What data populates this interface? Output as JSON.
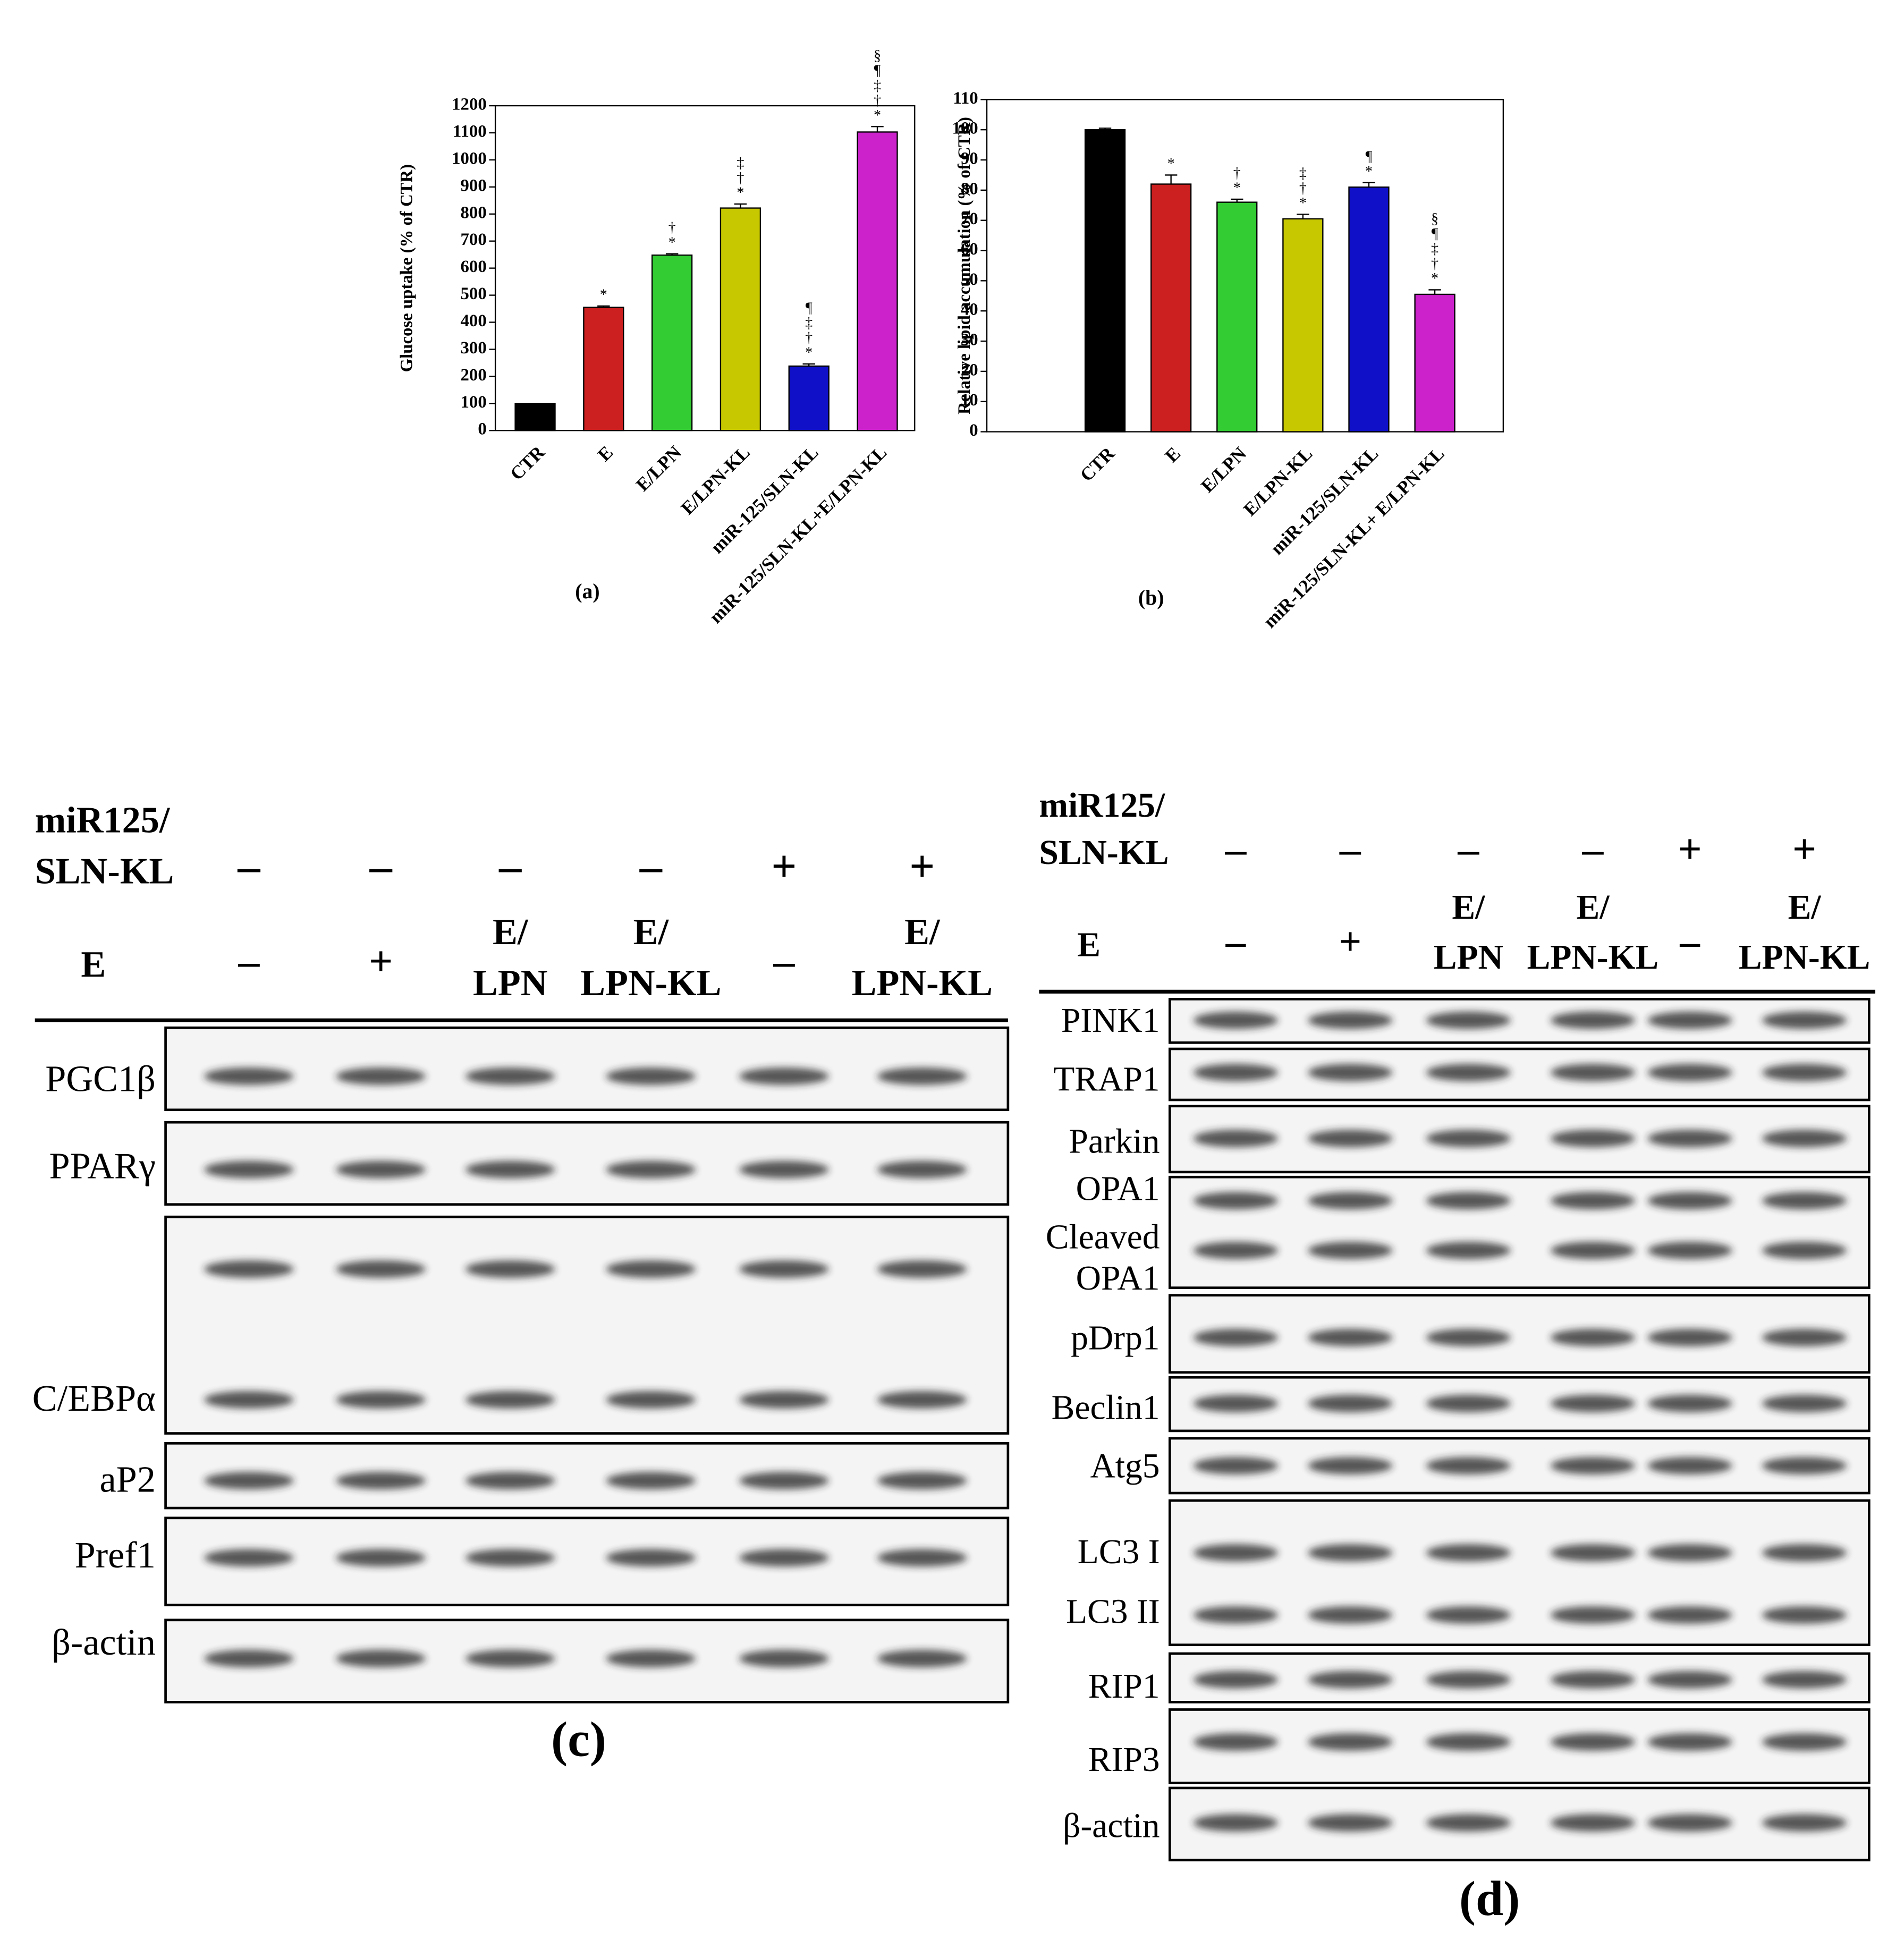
{
  "chart_data": [
    {
      "type": "bar",
      "panel": "(a)",
      "ylabel": "Glucose uptake (% of CTR)",
      "categories": [
        "CTR",
        "E",
        "E/LPN",
        "E/LPN-KL",
        "miR-125/SLN-KL",
        "miR-125/SLN-KL+E/LPN-KL"
      ],
      "values": [
        100,
        455,
        648,
        822,
        238,
        1103
      ],
      "errors": [
        0,
        5,
        5,
        15,
        8,
        20
      ],
      "colors": [
        "#000000",
        "#cc1f1f",
        "#33cc33",
        "#c8c800",
        "#1010c8",
        "#cc22cc"
      ],
      "annotations": [
        [],
        [
          "*"
        ],
        [
          "†",
          "*"
        ],
        [
          "‡",
          "†",
          "*"
        ],
        [
          "¶",
          "‡",
          "†",
          "*"
        ],
        [
          "§",
          "¶",
          "‡",
          "†",
          "*"
        ]
      ],
      "ylim": [
        0,
        1200
      ],
      "yticks": [
        0,
        100,
        200,
        300,
        400,
        500,
        600,
        700,
        800,
        900,
        1000,
        1100,
        1200
      ]
    },
    {
      "type": "bar",
      "panel": "(b)",
      "ylabel": "Relative lipid accumulation (% of CTR)",
      "categories": [
        "CTR",
        "E",
        "E/LPN",
        "E/LPN-KL",
        "miR-125/SLN-KL",
        "miR-125/SLN-KL+ E/LPN-KL"
      ],
      "values": [
        100,
        82,
        76,
        70.5,
        81,
        45.5
      ],
      "errors": [
        0.5,
        3,
        1,
        1.5,
        1.5,
        1.5
      ],
      "colors": [
        "#000000",
        "#cc1f1f",
        "#33cc33",
        "#c8c800",
        "#1010c8",
        "#cc22cc"
      ],
      "annotations": [
        [],
        [
          "*"
        ],
        [
          "†",
          "*"
        ],
        [
          "‡",
          "†",
          "*"
        ],
        [
          "¶",
          "*"
        ],
        [
          "§",
          "¶",
          "‡",
          "†",
          "*"
        ]
      ],
      "ylim": [
        0,
        110
      ],
      "yticks": [
        0,
        10,
        20,
        30,
        40,
        50,
        60,
        70,
        80,
        90,
        100,
        110
      ]
    }
  ],
  "blots": [
    {
      "panel": "(c)",
      "header": {
        "lines": [
          "miR125/",
          "SLN-KL"
        ],
        "lanes": [
          "–",
          "–",
          "–",
          "–",
          "+",
          "+"
        ]
      },
      "treatment": {
        "label": "E",
        "lanes": [
          [
            "–"
          ],
          [
            "+"
          ],
          [
            "E/",
            "LPN"
          ],
          [
            "E/",
            "LPN-KL"
          ],
          [
            "–"
          ],
          [
            "E/",
            "LPN-KL"
          ]
        ]
      },
      "rows": [
        {
          "labels": [
            "PGC1β"
          ]
        },
        {
          "labels": [
            "PPARγ"
          ]
        },
        {
          "labels": [
            "C/EBPα"
          ]
        },
        {
          "labels": [
            "aP2"
          ]
        },
        {
          "labels": [
            "Pref1"
          ]
        },
        {
          "labels": [
            "β-actin"
          ]
        }
      ]
    },
    {
      "panel": "(d)",
      "header": {
        "lines": [
          "miR125/",
          "SLN-KL"
        ],
        "lanes": [
          "–",
          "–",
          "–",
          "–",
          "+",
          "+"
        ]
      },
      "treatment": {
        "label": "E",
        "lanes": [
          [
            "–"
          ],
          [
            "+"
          ],
          [
            "E/",
            "LPN"
          ],
          [
            "E/",
            "LPN-KL"
          ],
          [
            "–"
          ],
          [
            "E/",
            "LPN-KL"
          ]
        ]
      },
      "rows": [
        {
          "labels": [
            "PINK1"
          ]
        },
        {
          "labels": [
            "TRAP1"
          ]
        },
        {
          "labels": [
            "Parkin"
          ]
        },
        {
          "labels": [
            "OPA1",
            "Cleaved",
            "OPA1"
          ]
        },
        {
          "labels": [
            "pDrp1"
          ]
        },
        {
          "labels": [
            "Beclin1"
          ]
        },
        {
          "labels": [
            "Atg5"
          ]
        },
        {
          "labels": [
            "LC3 I",
            "LC3 II"
          ]
        },
        {
          "labels": [
            "RIP1"
          ]
        },
        {
          "labels": [
            "RIP3"
          ]
        },
        {
          "labels": [
            "β-actin"
          ]
        }
      ]
    }
  ]
}
